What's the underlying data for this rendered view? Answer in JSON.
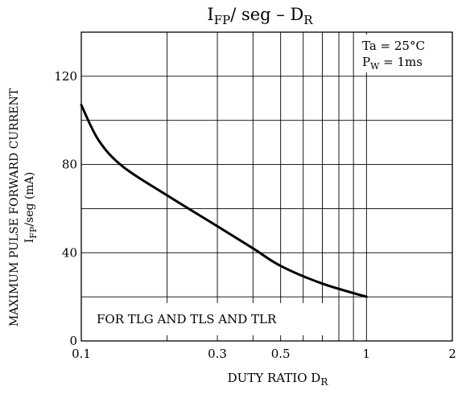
{
  "chart_data": {
    "type": "line",
    "title": {
      "main": "I",
      "main_sub": "FP",
      "mid": "/ seg  –  D",
      "end_sub": "R"
    },
    "xlabel": {
      "main": "DUTY RATIO  D",
      "sub": "R"
    },
    "ylabel": {
      "line1": "MAXIMUM PULSE FORWARD CURRENT",
      "line2_main": "I",
      "line2_sub": "FP",
      "line2_rest": "/seg   (mA)"
    },
    "x_scale": "log",
    "xlim": [
      0.1,
      2
    ],
    "ylim": [
      0,
      140
    ],
    "x_ticks": [
      {
        "value": 0.1,
        "label": "0.1"
      },
      {
        "value": 0.3,
        "label": "0.3"
      },
      {
        "value": 0.5,
        "label": "0.5"
      },
      {
        "value": 1,
        "label": "1"
      },
      {
        "value": 2,
        "label": "2"
      }
    ],
    "x_gridlines": [
      0.2,
      0.3,
      0.4,
      0.5,
      0.6,
      0.7,
      0.8,
      0.9,
      1
    ],
    "y_ticks": [
      {
        "value": 0,
        "label": "0"
      },
      {
        "value": 40,
        "label": "40"
      },
      {
        "value": 80,
        "label": "80"
      },
      {
        "value": 120,
        "label": "120"
      }
    ],
    "y_gridlines": [
      20,
      40,
      60,
      80,
      100,
      120
    ],
    "grid": true,
    "series": [
      {
        "x": [
          0.1,
          0.115,
          0.14,
          0.2,
          0.3,
          0.4,
          0.5,
          0.7,
          1.0
        ],
        "y": [
          107,
          91,
          79,
          66,
          52,
          42,
          34,
          26,
          20
        ]
      }
    ],
    "annotations": {
      "conditions_line1": "Ta = 25°C",
      "conditions_line2_main": "P",
      "conditions_line2_sub": "W",
      "conditions_line2_rest": " = 1ms",
      "footer_note": "FOR TLG AND TLS AND TLR"
    }
  }
}
